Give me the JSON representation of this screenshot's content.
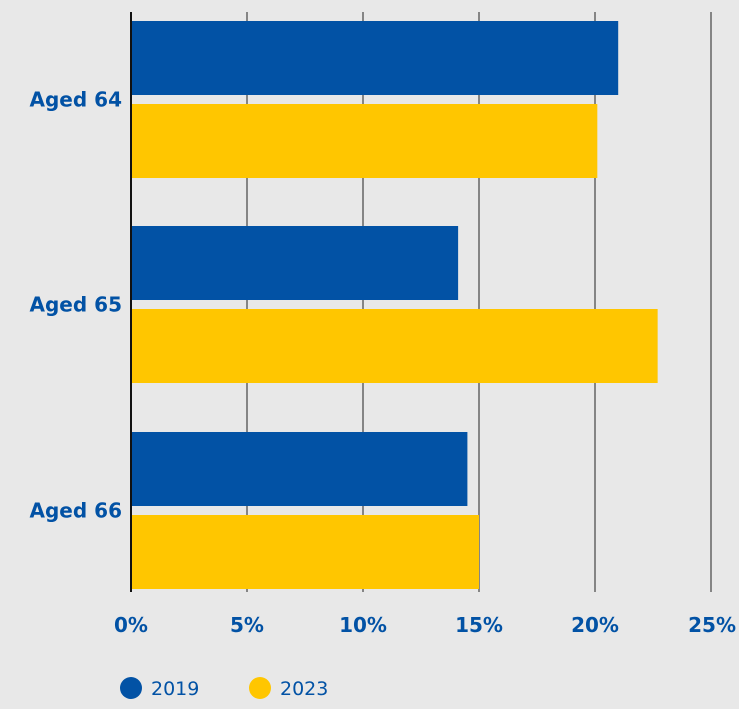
{
  "chart_data": {
    "type": "bar",
    "orientation": "horizontal",
    "title": "",
    "xlabel": "",
    "ylabel": "",
    "categories": [
      "Aged 64",
      "Aged 65",
      "Aged 66"
    ],
    "series": [
      {
        "name": "2019",
        "values": [
          21.0,
          14.1,
          14.5
        ]
      },
      {
        "name": "2023",
        "values": [
          20.1,
          22.7,
          15.0
        ]
      }
    ],
    "xlim": [
      0,
      25
    ],
    "x_ticks": [
      0,
      5,
      10,
      15,
      20,
      25
    ],
    "x_tick_labels": [
      "0%",
      "5%",
      "10%",
      "15%",
      "20%",
      "25%"
    ],
    "grid": "vertical",
    "legend_position": "bottom-left",
    "colors": {
      "2019": "#0252a5",
      "2023": "#ffc600",
      "label_text": "#0252a5",
      "gridline": "#222222",
      "background": "#e8e8e8"
    }
  }
}
